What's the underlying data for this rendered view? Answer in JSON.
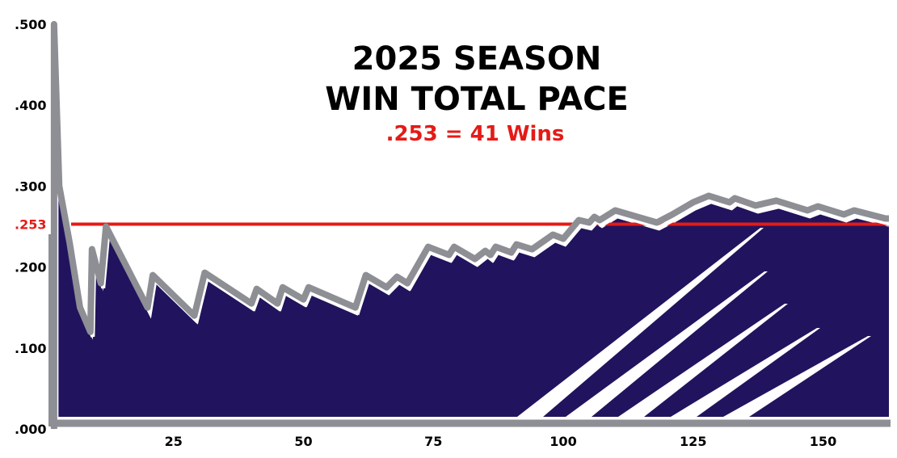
{
  "chart_data": {
    "type": "area",
    "title": [
      "2025 SEASON",
      "WIN TOTAL PACE"
    ],
    "subtitle": ".253 = 41 Wins",
    "xlabel": "",
    "ylabel": "",
    "xlim": [
      0,
      162
    ],
    "ylim": [
      0,
      0.5
    ],
    "x_ticks": [
      25,
      50,
      75,
      100,
      125,
      150
    ],
    "y_ticks": [
      ".000",
      ".100",
      ".200",
      ".300",
      ".400",
      ".500"
    ],
    "y_tick_values": [
      0,
      0.1,
      0.2,
      0.3,
      0.4,
      0.5
    ],
    "reference_line": {
      "value": 0.253,
      "label": ".253",
      "color": "#e41b17"
    },
    "grid": false,
    "colors": {
      "fill": "#22135e",
      "line": "#8d8f94",
      "accent": "#e41b17"
    },
    "series": [
      {
        "points": [
          [
            2,
            0.0
          ],
          [
            2,
            0.5
          ],
          [
            3,
            0.3
          ],
          [
            5,
            0.23
          ],
          [
            7,
            0.15
          ],
          [
            9,
            0.12
          ],
          [
            9.3,
            0.222
          ],
          [
            11,
            0.18
          ],
          [
            12,
            0.25
          ],
          [
            20,
            0.15
          ],
          [
            21,
            0.19
          ],
          [
            29,
            0.14
          ],
          [
            31,
            0.193
          ],
          [
            40,
            0.155
          ],
          [
            41,
            0.173
          ],
          [
            45,
            0.155
          ],
          [
            46,
            0.175
          ],
          [
            50,
            0.16
          ],
          [
            51,
            0.175
          ],
          [
            60,
            0.15
          ],
          [
            62,
            0.19
          ],
          [
            66,
            0.175
          ],
          [
            68,
            0.188
          ],
          [
            70,
            0.18
          ],
          [
            74,
            0.225
          ],
          [
            78,
            0.215
          ],
          [
            79,
            0.225
          ],
          [
            83,
            0.21
          ],
          [
            85,
            0.22
          ],
          [
            86,
            0.215
          ],
          [
            87,
            0.225
          ],
          [
            90,
            0.218
          ],
          [
            91,
            0.228
          ],
          [
            94,
            0.222
          ],
          [
            98,
            0.24
          ],
          [
            100,
            0.235
          ],
          [
            103,
            0.258
          ],
          [
            105,
            0.255
          ],
          [
            106,
            0.262
          ],
          [
            107,
            0.258
          ],
          [
            110,
            0.27
          ],
          [
            118,
            0.255
          ],
          [
            121,
            0.265
          ],
          [
            125,
            0.28
          ],
          [
            128,
            0.288
          ],
          [
            132,
            0.28
          ],
          [
            133,
            0.285
          ],
          [
            137,
            0.276
          ],
          [
            141,
            0.282
          ],
          [
            147,
            0.27
          ],
          [
            149,
            0.275
          ],
          [
            154,
            0.265
          ],
          [
            156,
            0.27
          ],
          [
            162,
            0.26
          ]
        ]
      }
    ]
  }
}
